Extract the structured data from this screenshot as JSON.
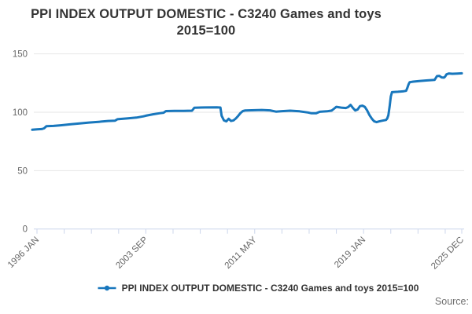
{
  "title": {
    "line1": "PPI INDEX OUTPUT DOMESTIC - C3240 Games and toys",
    "line2": "2015=100"
  },
  "legend": {
    "label": "PPI INDEX OUTPUT DOMESTIC - C3240 Games and toys 2015=100"
  },
  "source": {
    "label": "Source:"
  },
  "colors": {
    "series": "#1877bd",
    "grid": "#e6e6e6",
    "axis": "#ccd6eb",
    "axis_label": "#666666",
    "title_text": "#333333",
    "legend_text": "#333333",
    "source_text": "#707070"
  },
  "chart_data": {
    "type": "line",
    "title": "PPI INDEX OUTPUT DOMESTIC - C3240 Games and toys 2015=100",
    "grid": true,
    "legend_position": "bottom",
    "x_axis": {
      "unit": "month",
      "start": "1996 JAN",
      "end": "2025 DEC",
      "minor_tick_interval_months": 23,
      "labeled_ticks": [
        {
          "month": 0,
          "label": "1996 JAN"
        },
        {
          "month": 92,
          "label": "2003 SEP"
        },
        {
          "month": 184,
          "label": "2011 MAY"
        },
        {
          "month": 276,
          "label": "2019 JAN"
        },
        {
          "month": 359,
          "label": "2025 DEC"
        }
      ],
      "label_rotation_deg": -45
    },
    "y_axis": {
      "ticks": [
        0,
        50,
        100,
        150
      ],
      "range": [
        0,
        157
      ]
    },
    "series": [
      {
        "name": "PPI INDEX OUTPUT DOMESTIC - C3240 Games and toys 2015=100",
        "note": "Monthly index series; points are key values [months_since_1996_JAN, index_value] estimated from the plot.",
        "points": [
          [
            -4,
            85.0
          ],
          [
            0,
            85.4
          ],
          [
            4,
            85.6
          ],
          [
            6,
            86.2
          ],
          [
            8,
            88.0
          ],
          [
            14,
            88.3
          ],
          [
            20,
            88.8
          ],
          [
            28,
            89.6
          ],
          [
            36,
            90.4
          ],
          [
            44,
            91.2
          ],
          [
            52,
            91.8
          ],
          [
            60,
            92.5
          ],
          [
            66,
            92.8
          ],
          [
            68,
            94.0
          ],
          [
            76,
            94.7
          ],
          [
            84,
            95.4
          ],
          [
            90,
            96.5
          ],
          [
            92,
            97.0
          ],
          [
            98,
            98.2
          ],
          [
            104,
            99.2
          ],
          [
            107,
            99.6
          ],
          [
            109,
            101.0
          ],
          [
            116,
            101.1
          ],
          [
            124,
            101.2
          ],
          [
            131,
            101.3
          ],
          [
            133,
            103.9
          ],
          [
            142,
            104.1
          ],
          [
            152,
            104.2
          ],
          [
            155,
            104.0
          ],
          [
            156,
            97.0
          ],
          [
            158,
            93.0
          ],
          [
            160,
            92.2
          ],
          [
            162,
            94.4
          ],
          [
            164,
            92.5
          ],
          [
            166,
            93.0
          ],
          [
            168,
            94.6
          ],
          [
            170,
            96.8
          ],
          [
            172,
            99.3
          ],
          [
            174,
            101.0
          ],
          [
            176,
            101.5
          ],
          [
            184,
            101.7
          ],
          [
            190,
            101.9
          ],
          [
            197,
            101.6
          ],
          [
            202,
            100.5
          ],
          [
            207,
            100.9
          ],
          [
            214,
            101.3
          ],
          [
            222,
            100.8
          ],
          [
            229,
            99.8
          ],
          [
            232,
            99.1
          ],
          [
            236,
            99.2
          ],
          [
            239,
            100.4
          ],
          [
            245,
            100.8
          ],
          [
            249,
            101.4
          ],
          [
            251,
            103.0
          ],
          [
            253,
            104.6
          ],
          [
            255,
            104.3
          ],
          [
            258,
            103.8
          ],
          [
            261,
            103.6
          ],
          [
            263,
            104.4
          ],
          [
            265,
            106.3
          ],
          [
            267,
            103.7
          ],
          [
            269,
            101.5
          ],
          [
            271,
            102.3
          ],
          [
            273,
            105.2
          ],
          [
            275,
            105.6
          ],
          [
            277,
            104.6
          ],
          [
            279,
            101.5
          ],
          [
            281,
            97.5
          ],
          [
            283,
            94.5
          ],
          [
            285,
            92.2
          ],
          [
            287,
            91.5
          ],
          [
            289,
            92.1
          ],
          [
            292,
            92.8
          ],
          [
            295,
            93.4
          ],
          [
            296,
            94.6
          ],
          [
            297,
            97.5
          ],
          [
            298,
            105.0
          ],
          [
            299,
            113.5
          ],
          [
            300,
            117.2
          ],
          [
            305,
            117.5
          ],
          [
            310,
            118.0
          ],
          [
            312,
            118.4
          ],
          [
            313,
            120.8
          ],
          [
            314,
            123.8
          ],
          [
            315,
            125.7
          ],
          [
            318,
            126.2
          ],
          [
            323,
            126.7
          ],
          [
            329,
            127.2
          ],
          [
            335,
            127.6
          ],
          [
            336,
            127.7
          ],
          [
            337,
            129.2
          ],
          [
            338,
            130.9
          ],
          [
            340,
            131.2
          ],
          [
            342,
            129.8
          ],
          [
            344,
            129.6
          ],
          [
            345,
            130.6
          ],
          [
            346,
            132.4
          ],
          [
            348,
            133.2
          ],
          [
            351,
            132.9
          ],
          [
            355,
            133.1
          ],
          [
            359,
            133.3
          ]
        ]
      }
    ]
  }
}
